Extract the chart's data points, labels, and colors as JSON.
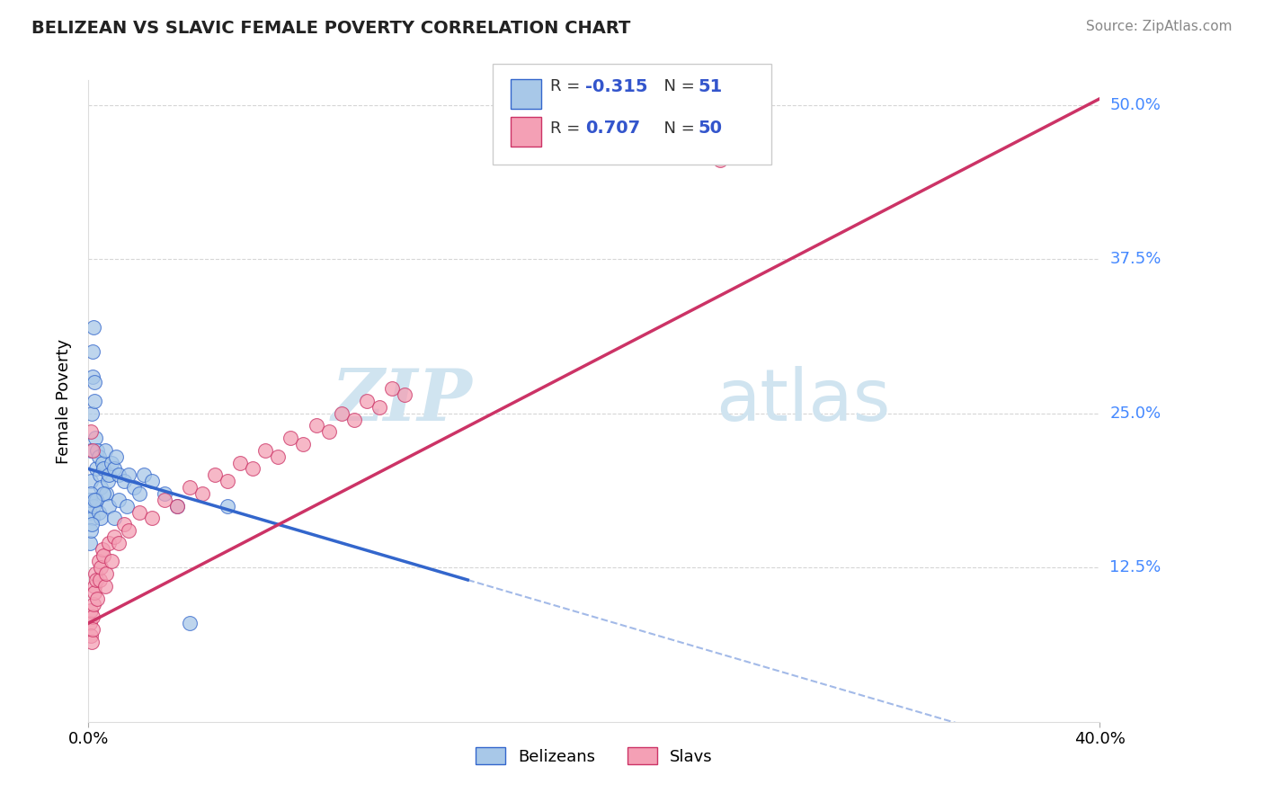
{
  "title": "BELIZEAN VS SLAVIC FEMALE POVERTY CORRELATION CHART",
  "source_text": "Source: ZipAtlas.com",
  "ylabel": "Female Poverty",
  "xlim": [
    0.0,
    40.0
  ],
  "ylim": [
    0.0,
    52.0
  ],
  "y_tick_values": [
    12.5,
    25.0,
    37.5,
    50.0
  ],
  "y_tick_labels": [
    "12.5%",
    "25.0%",
    "37.5%",
    "50.0%"
  ],
  "color_blue": "#a8c8e8",
  "color_pink": "#f4a0b5",
  "line_blue": "#3366cc",
  "line_pink": "#cc3366",
  "watermark_color": "#d0e4f0",
  "background_color": "#ffffff",
  "grid_color": "#cccccc",
  "blue_line_x0": 0.0,
  "blue_line_y0": 20.5,
  "blue_line_x1": 15.0,
  "blue_line_y1": 11.5,
  "pink_line_x0": 0.0,
  "pink_line_y0": 8.0,
  "pink_line_x1": 40.0,
  "pink_line_y1": 50.5,
  "belizean_x": [
    0.05,
    0.08,
    0.1,
    0.12,
    0.15,
    0.18,
    0.2,
    0.22,
    0.25,
    0.28,
    0.3,
    0.35,
    0.4,
    0.45,
    0.5,
    0.55,
    0.6,
    0.65,
    0.7,
    0.75,
    0.8,
    0.9,
    1.0,
    1.1,
    1.2,
    1.4,
    1.6,
    1.8,
    2.0,
    2.2,
    2.5,
    3.0,
    3.5,
    4.0,
    0.05,
    0.1,
    0.15,
    0.2,
    0.3,
    0.4,
    0.5,
    0.6,
    0.8,
    1.0,
    1.2,
    1.5,
    0.05,
    0.08,
    0.12,
    0.25,
    5.5
  ],
  "belizean_y": [
    17.0,
    19.5,
    22.0,
    25.0,
    28.0,
    30.0,
    32.0,
    27.5,
    26.0,
    23.0,
    20.5,
    22.0,
    21.5,
    20.0,
    19.0,
    21.0,
    20.5,
    22.0,
    18.5,
    19.5,
    20.0,
    21.0,
    20.5,
    21.5,
    20.0,
    19.5,
    20.0,
    19.0,
    18.5,
    20.0,
    19.5,
    18.5,
    17.5,
    8.0,
    18.0,
    18.5,
    16.5,
    17.5,
    18.0,
    17.0,
    16.5,
    18.5,
    17.5,
    16.5,
    18.0,
    17.5,
    14.5,
    15.5,
    16.0,
    18.0,
    17.5
  ],
  "slavic_x": [
    0.05,
    0.08,
    0.1,
    0.12,
    0.15,
    0.18,
    0.2,
    0.22,
    0.25,
    0.28,
    0.3,
    0.35,
    0.4,
    0.45,
    0.5,
    0.55,
    0.6,
    0.65,
    0.7,
    0.8,
    0.9,
    1.0,
    1.2,
    1.4,
    1.6,
    2.0,
    2.5,
    3.0,
    3.5,
    4.0,
    4.5,
    5.0,
    5.5,
    6.0,
    6.5,
    7.0,
    7.5,
    8.0,
    8.5,
    9.0,
    9.5,
    10.0,
    10.5,
    11.0,
    11.5,
    12.0,
    12.5,
    0.08,
    0.15,
    25.0
  ],
  "slavic_y": [
    8.0,
    7.0,
    9.0,
    6.5,
    8.5,
    7.5,
    9.5,
    11.0,
    10.5,
    12.0,
    11.5,
    10.0,
    13.0,
    11.5,
    12.5,
    14.0,
    13.5,
    11.0,
    12.0,
    14.5,
    13.0,
    15.0,
    14.5,
    16.0,
    15.5,
    17.0,
    16.5,
    18.0,
    17.5,
    19.0,
    18.5,
    20.0,
    19.5,
    21.0,
    20.5,
    22.0,
    21.5,
    23.0,
    22.5,
    24.0,
    23.5,
    25.0,
    24.5,
    26.0,
    25.5,
    27.0,
    26.5,
    23.5,
    22.0,
    45.5
  ]
}
